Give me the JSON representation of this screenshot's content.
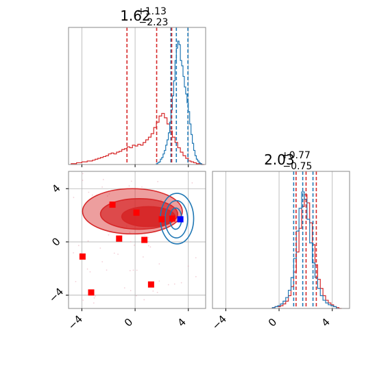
{
  "chart_data": {
    "type": "corner",
    "colors": {
      "red": "#d62728",
      "blue": "#1f77b4",
      "grid": "#b0b0b0",
      "marker_red": "#ff0000",
      "marker_blue": "#0000ff"
    },
    "params": [
      {
        "title": {
          "value": "1.62",
          "sup": "+1.13",
          "sub": "−2.23"
        },
        "range": [
          -5,
          5.3
        ]
      },
      {
        "title": {
          "value": "2.03",
          "sup": "+0.77",
          "sub": "−0.75"
        },
        "range": [
          -5,
          5.3
        ]
      }
    ],
    "ticks": [
      -4,
      0,
      4
    ],
    "tick_labels": [
      "−4",
      "0",
      "4"
    ],
    "grid": true,
    "marginal_1": {
      "red_hist": {
        "bins": [
          -4.8,
          -4.6,
          -4.4,
          -4.2,
          -4.0,
          -3.8,
          -3.6,
          -3.4,
          -3.2,
          -3.0,
          -2.8,
          -2.6,
          -2.4,
          -2.2,
          -2.0,
          -1.8,
          -1.6,
          -1.4,
          -1.2,
          -1.0,
          -0.8,
          -0.6,
          -0.4,
          -0.2,
          0.0,
          0.2,
          0.4,
          0.6,
          0.8,
          1.0,
          1.2,
          1.4,
          1.6,
          1.8,
          2.0,
          2.2,
          2.4,
          2.6,
          2.8,
          3.0,
          3.2,
          3.4,
          3.6,
          3.8,
          4.0,
          4.2,
          4.4,
          4.6,
          4.8,
          5.0
        ],
        "counts": [
          1,
          1,
          2,
          2,
          3,
          3,
          4,
          4,
          5,
          6,
          7,
          8,
          9,
          10,
          12,
          13,
          12,
          14,
          15,
          17,
          18,
          20,
          19,
          22,
          21,
          23,
          22,
          25,
          28,
          31,
          35,
          42,
          48,
          55,
          58,
          53,
          46,
          38,
          31,
          25,
          19,
          14,
          10,
          7,
          4,
          3,
          2,
          1,
          1,
          0
        ]
      },
      "blue_hist": {
        "bins": [
          1.6,
          1.7,
          1.8,
          1.9,
          2.0,
          2.1,
          2.2,
          2.3,
          2.4,
          2.5,
          2.6,
          2.7,
          2.8,
          2.9,
          3.0,
          3.1,
          3.2,
          3.3,
          3.4,
          3.5,
          3.6,
          3.7,
          3.8,
          3.9,
          4.0,
          4.1,
          4.2,
          4.3,
          4.4,
          4.5,
          4.6,
          4.7,
          4.8,
          4.9,
          5.0
        ],
        "counts": [
          1,
          2,
          3,
          6,
          8,
          12,
          16,
          22,
          28,
          36,
          48,
          62,
          78,
          95,
          118,
          132,
          140,
          136,
          118,
          112,
          100,
          88,
          80,
          70,
          60,
          46,
          34,
          24,
          16,
          10,
          6,
          4,
          2,
          1,
          0
        ]
      },
      "red_quantiles": [
        -0.61,
        1.62,
        2.75
      ],
      "blue_quantiles": [
        2.69,
        3.1,
        3.97
      ]
    },
    "marginal_2": {
      "red_hist": {
        "bins": [
          -0.5,
          -0.3,
          -0.1,
          0.1,
          0.3,
          0.5,
          0.7,
          0.9,
          1.1,
          1.3,
          1.5,
          1.7,
          1.9,
          2.1,
          2.3,
          2.5,
          2.7,
          2.9,
          3.1,
          3.3,
          3.5,
          3.7,
          3.9,
          4.1,
          4.3,
          4.5
        ],
        "counts": [
          1,
          2,
          2,
          3,
          5,
          8,
          14,
          24,
          40,
          62,
          88,
          112,
          125,
          116,
          94,
          70,
          48,
          32,
          22,
          14,
          9,
          6,
          4,
          2,
          1,
          0
        ]
      },
      "blue_hist": {
        "bins": [
          -0.5,
          -0.3,
          -0.1,
          0.1,
          0.3,
          0.5,
          0.7,
          0.9,
          1.1,
          1.3,
          1.5,
          1.7,
          1.9,
          2.1,
          2.3,
          2.5,
          2.7,
          2.9,
          3.1,
          3.3,
          3.5,
          3.7,
          3.9,
          4.1,
          4.3
        ],
        "counts": [
          1,
          2,
          3,
          5,
          8,
          12,
          20,
          34,
          55,
          85,
          110,
          128,
          120,
          98,
          72,
          50,
          34,
          22,
          14,
          9,
          6,
          4,
          3,
          2,
          0
        ]
      },
      "red_quantiles": [
        1.28,
        2.03,
        2.8
      ],
      "blue_quantiles": [
        1.1,
        1.78,
        2.55
      ]
    },
    "joint": {
      "red_contours": [
        {
          "level": "outer",
          "center": [
            -0.2,
            2.3
          ],
          "rx": 3.75,
          "ry": 1.7,
          "rot": 0
        },
        {
          "level": "mid",
          "center": [
            0.3,
            2.1
          ],
          "rx": 2.9,
          "ry": 1.15,
          "rot": 0
        },
        {
          "level": "inner",
          "center": [
            1.0,
            1.9
          ],
          "rx": 2.0,
          "ry": 0.75,
          "rot": 0
        }
      ],
      "blue_contours": [
        {
          "level": "outer",
          "center": [
            3.15,
            1.75
          ],
          "rx": 1.25,
          "ry": 1.9,
          "rot": 0
        },
        {
          "level": "mid",
          "center": [
            3.1,
            1.7
          ],
          "rx": 0.85,
          "ry": 1.4,
          "rot": 0
        },
        {
          "level": "inner",
          "center": [
            3.05,
            1.75
          ],
          "rx": 0.45,
          "ry": 0.8,
          "rot": 0
        }
      ],
      "red_markers": [
        {
          "x": -1.7,
          "y": 2.8
        },
        {
          "x": 0.1,
          "y": 2.2
        },
        {
          "x": -1.2,
          "y": 0.25
        },
        {
          "x": 0.7,
          "y": 0.15
        },
        {
          "x": 2.0,
          "y": 1.7
        },
        {
          "x": 2.8,
          "y": 1.75
        },
        {
          "x": -3.95,
          "y": -1.1
        },
        {
          "x": -3.3,
          "y": -3.8
        },
        {
          "x": 1.2,
          "y": -3.2
        }
      ],
      "blue_markers": [
        {
          "x": 3.4,
          "y": 1.7
        }
      ]
    }
  }
}
